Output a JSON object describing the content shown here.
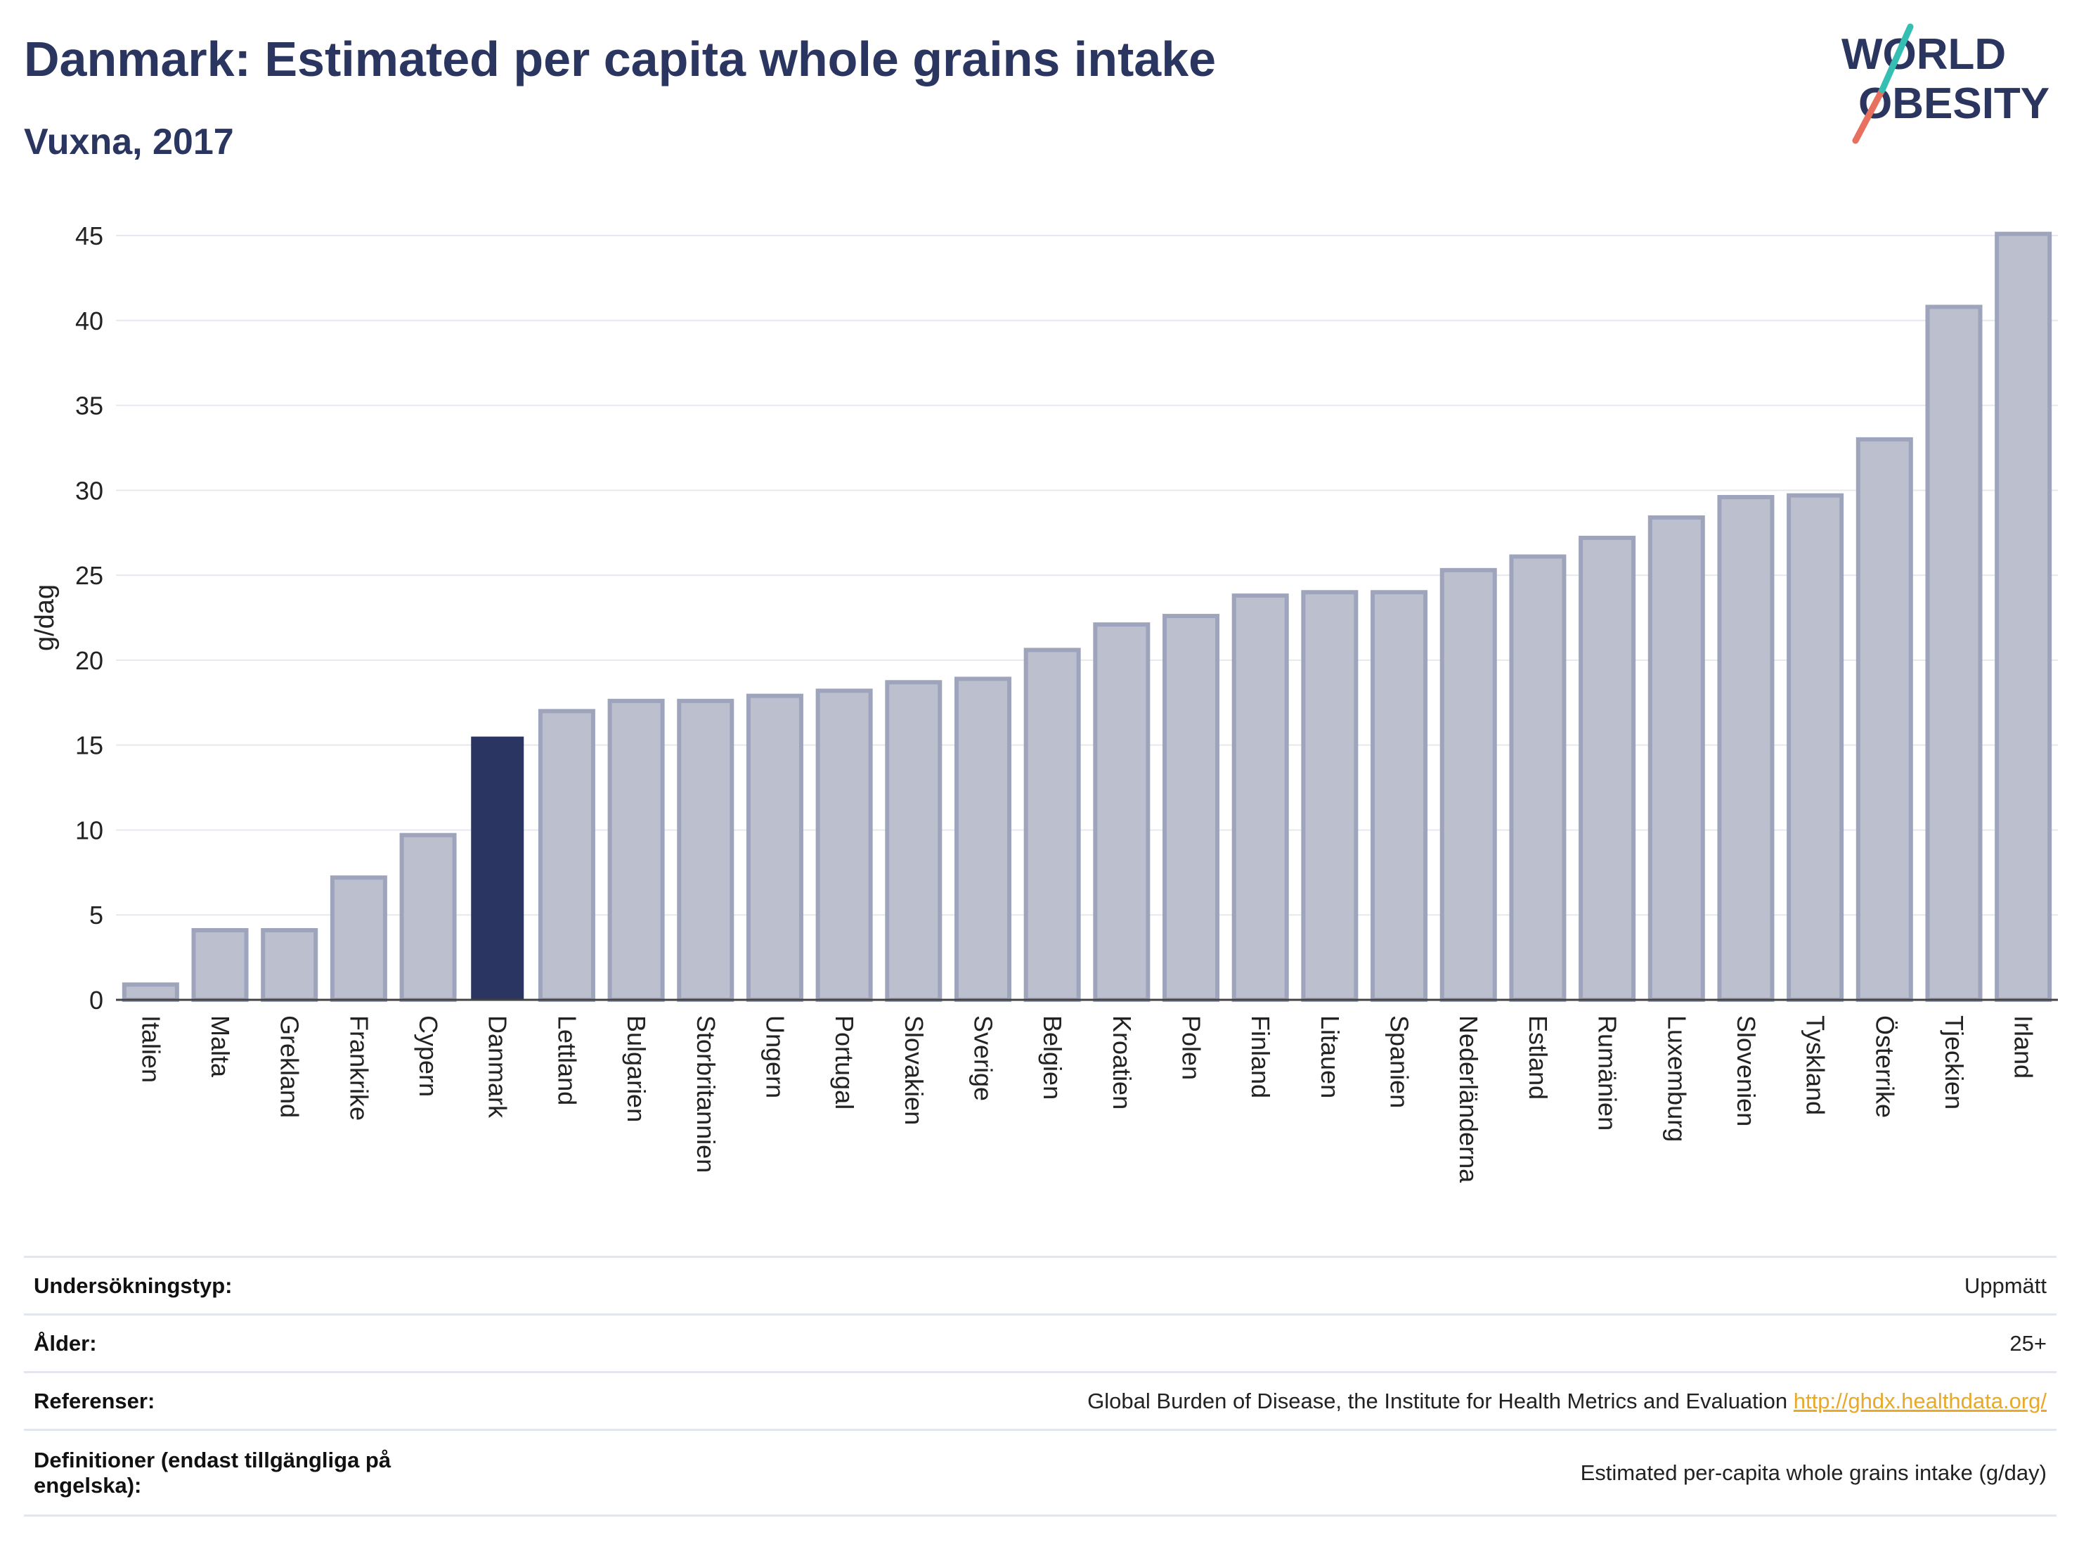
{
  "title": "Danmark: Estimated per capita whole grains intake",
  "subtitle": "Vuxna, 2017",
  "logo": {
    "line1": "WORLD",
    "line2": "OBESITY"
  },
  "colors": {
    "title": "#2a3560",
    "bar": "#bcc0ce",
    "bar_edge": "#9ea4bb",
    "highlight": "#2b3561",
    "link": "#e8a92a"
  },
  "chart_data": {
    "type": "bar",
    "ylabel": "g/dag",
    "xlabel": "",
    "ylim": [
      0,
      45
    ],
    "yticks": [
      0,
      5,
      10,
      15,
      20,
      25,
      30,
      35,
      40,
      45
    ],
    "grid": true,
    "highlight": "Danmark",
    "categories": [
      "Italien",
      "Malta",
      "Grekland",
      "Frankrike",
      "Cypern",
      "Danmark",
      "Lettland",
      "Bulgarien",
      "Storbritannien",
      "Ungern",
      "Portugal",
      "Slovakien",
      "Sverige",
      "Belgien",
      "Kroatien",
      "Polen",
      "Finland",
      "Litauen",
      "Spanien",
      "Nederländerna",
      "Estland",
      "Rumänien",
      "Luxemburg",
      "Slovenien",
      "Tyskland",
      "Österrike",
      "Tjeckien",
      "Irland"
    ],
    "values": [
      0.9,
      4.1,
      4.1,
      7.2,
      9.7,
      15.5,
      17.0,
      17.6,
      17.6,
      17.9,
      18.2,
      18.7,
      18.9,
      20.6,
      22.1,
      22.6,
      23.8,
      24.0,
      24.0,
      25.3,
      26.1,
      27.2,
      28.4,
      29.6,
      29.7,
      33.0,
      40.8,
      45.1
    ]
  },
  "info": [
    {
      "label": "Undersökningstyp:",
      "value": "Uppmätt"
    },
    {
      "label": "Ålder:",
      "value": "25+"
    },
    {
      "label": "Referenser:",
      "value": "Global Burden of Disease, the Institute for Health Metrics and Evaluation",
      "link": "http://ghdx.healthdata.org/"
    },
    {
      "label": "Definitioner (endast tillgängliga på engelska):",
      "value": "Estimated per-capita whole grains intake (g/day)"
    }
  ]
}
